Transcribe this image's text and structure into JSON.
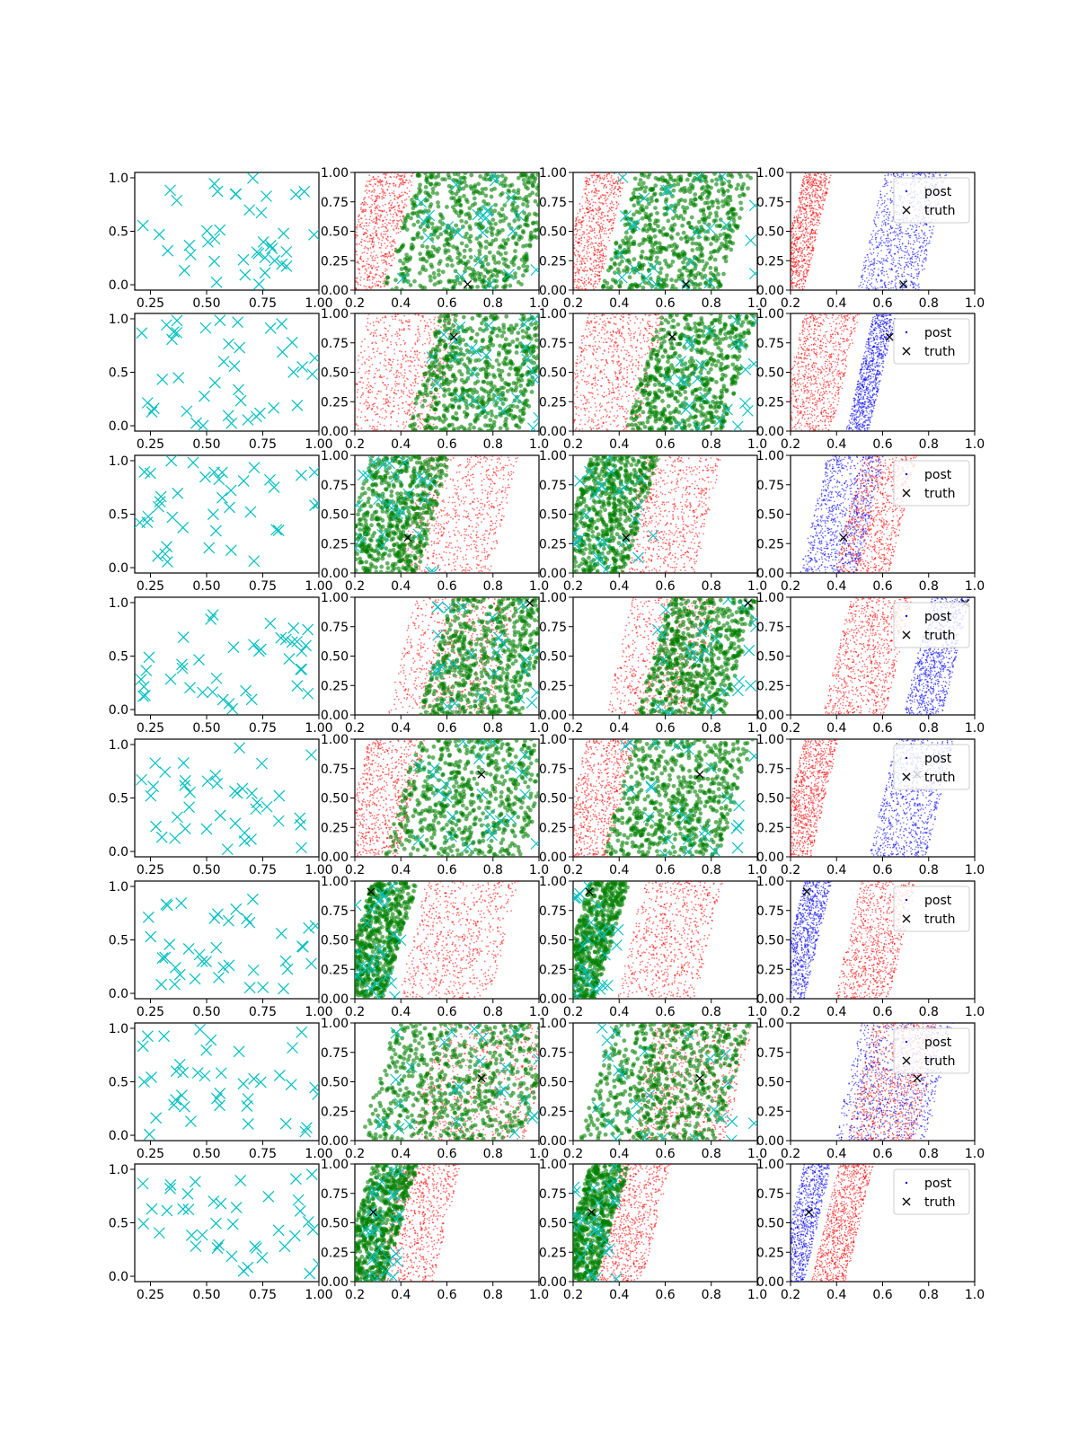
{
  "figure": {
    "rows": 8,
    "cols": 4,
    "legend_labels": {
      "post": "post",
      "truth": "truth"
    }
  },
  "chart_data": [
    {
      "type": "scatter-grid",
      "description_role": "col0-design-points",
      "xlim": [
        0.18,
        1.0
      ],
      "ylim": [
        -0.05,
        1.05
      ],
      "x_ticks": [
        0.25,
        0.5,
        0.75,
        1.0
      ],
      "x_tick_labels": [
        "0.25",
        "0.50",
        "0.75",
        "1.00"
      ],
      "y_ticks": [
        0.0,
        0.5,
        1.0
      ],
      "y_tick_labels": [
        "0.0",
        "0.5",
        "1.0"
      ],
      "marker": "x",
      "points_per_panel": 40,
      "colors": {
        "points": "#00bfbf"
      }
    },
    {
      "type": "scatter-grid",
      "description_role": "col1-col2-posterior-samples",
      "xlim": [
        0.2,
        1.0
      ],
      "ylim": [
        0.0,
        1.0
      ],
      "x_ticks": [
        0.2,
        0.4,
        0.6,
        0.8,
        1.0
      ],
      "x_tick_labels": [
        "0.2",
        "0.4",
        "0.6",
        "0.8",
        "1.0"
      ],
      "y_ticks": [
        0.0,
        0.25,
        0.5,
        0.75,
        1.0
      ],
      "y_tick_labels": [
        "0.00",
        "0.25",
        "0.50",
        "0.75",
        "1.00"
      ],
      "colors": {
        "post": "#ff0000",
        "accepted": "#008000",
        "design": "#00bfbf",
        "truth": "#000000"
      }
    },
    {
      "type": "scatter-grid",
      "description_role": "col3-posterior-with-legend",
      "xlim": [
        0.2,
        1.0
      ],
      "ylim": [
        0.0,
        1.0
      ],
      "x_ticks": [
        0.2,
        0.4,
        0.6,
        0.8,
        1.0
      ],
      "x_tick_labels": [
        "0.2",
        "0.4",
        "0.6",
        "0.8",
        "1.0"
      ],
      "y_ticks": [
        0.0,
        0.25,
        0.5,
        0.75,
        1.0
      ],
      "y_tick_labels": [
        "0.00",
        "0.25",
        "0.50",
        "0.75",
        "1.00"
      ],
      "legend": [
        "post",
        "truth"
      ],
      "colors": {
        "post_a": "#ff0000",
        "post_b": "#0000ff",
        "truth": "#000000"
      }
    },
    {
      "type": "truth-points",
      "rows": [
        {
          "truth": [
            0.69,
            0.05
          ],
          "red_band": [
            0.2,
            0.4
          ],
          "green_band": [
            0.4,
            1.0
          ],
          "blue_band": [
            0.55,
            0.82
          ]
        },
        {
          "truth": [
            0.63,
            0.8
          ],
          "red_band": [
            0.2,
            0.6
          ],
          "green_band": [
            0.5,
            1.0
          ],
          "blue_band": [
            0.5,
            0.6
          ]
        },
        {
          "truth": [
            0.43,
            0.3
          ],
          "red_band": [
            0.45,
            0.85
          ],
          "green_band": [
            0.2,
            0.55
          ],
          "blue_band": [
            0.3,
            0.55
          ]
        },
        {
          "truth": [
            0.96,
            0.95
          ],
          "red_band": [
            0.4,
            0.85
          ],
          "green_band": [
            0.55,
            1.0
          ],
          "blue_band": [
            0.75,
            0.92
          ]
        },
        {
          "truth": [
            0.75,
            0.7
          ],
          "red_band": [
            0.2,
            0.45
          ],
          "green_band": [
            0.4,
            1.0
          ],
          "blue_band": [
            0.6,
            0.85
          ]
        },
        {
          "truth": [
            0.27,
            0.91
          ],
          "red_band": [
            0.45,
            0.85
          ],
          "green_band": [
            0.2,
            0.4
          ],
          "blue_band": [
            0.2,
            0.32
          ]
        },
        {
          "truth": [
            0.75,
            0.53
          ],
          "red_band": [
            0.5,
            1.0
          ],
          "green_band": [
            0.3,
            1.0
          ],
          "blue_band": [
            0.45,
            0.85
          ]
        },
        {
          "truth": [
            0.28,
            0.59
          ],
          "red_band": [
            0.35,
            0.6
          ],
          "green_band": [
            0.2,
            0.4
          ],
          "blue_band": [
            0.2,
            0.32
          ]
        }
      ]
    }
  ]
}
